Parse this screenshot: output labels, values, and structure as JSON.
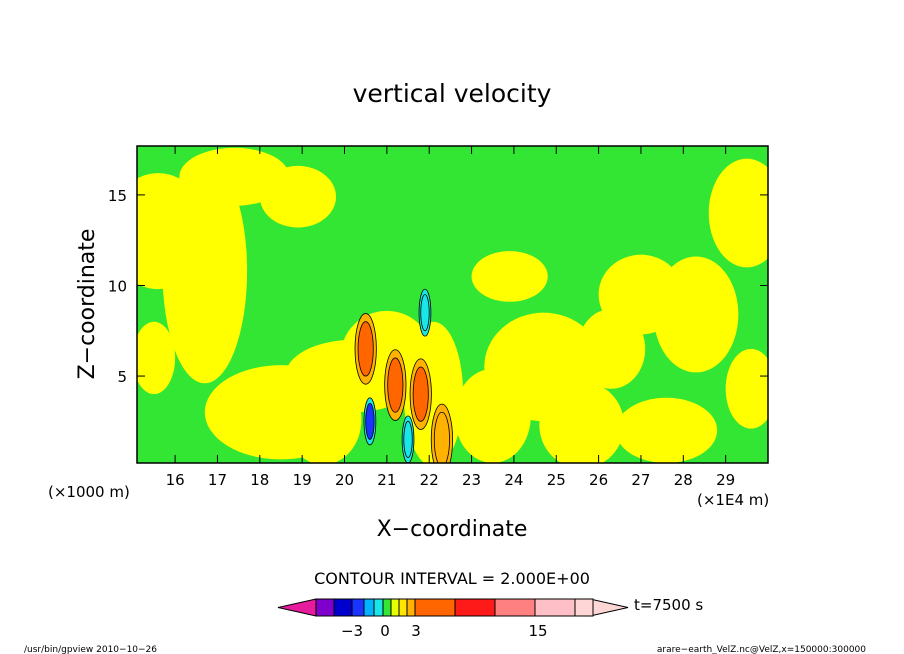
{
  "chart_data": {
    "type": "heatmap",
    "title": "vertical velocity",
    "xlabel": "X−coordinate",
    "ylabel": "Z−coordinate",
    "x_ticks": [
      "16",
      "17",
      "18",
      "19",
      "20",
      "21",
      "22",
      "23",
      "24",
      "25",
      "26",
      "27",
      "28",
      "29"
    ],
    "x_tick_values": [
      16,
      17,
      18,
      19,
      20,
      21,
      22,
      23,
      24,
      25,
      26,
      27,
      28,
      29
    ],
    "x_range": [
      15.1,
      30.0
    ],
    "x_unit_label": "(×1E4 m)",
    "y_ticks": [
      "5",
      "10",
      "15"
    ],
    "y_tick_values": [
      5,
      10,
      15
    ],
    "y_range": [
      0.2,
      17.7
    ],
    "y_unit_label": "(×1000 m)",
    "contour_interval": "CONTOUR INTERVAL = 2.000E+00",
    "time_label": "t=7500 s",
    "colorbar": {
      "tick_labels": [
        "−3",
        "0",
        "3",
        "15"
      ],
      "colors": [
        "#e61c9c",
        "#7f00cc",
        "#0000cc",
        "#1a33ff",
        "#00b3ff",
        "#19e6e6",
        "#33e633",
        "#e6ff00",
        "#ffe600",
        "#ffb300",
        "#ff6600",
        "#ff1a1a",
        "#ff8080",
        "#ffbfc6",
        "#ffd6d6"
      ]
    },
    "field_colors": {
      "weak_negative": "#33e633",
      "weak_positive": "#ffff00",
      "moderate_positive": "#ffb300",
      "strong_positive": "#ff6600",
      "moderate_negative": "#19e6e6",
      "strong_negative": "#1a33ff"
    },
    "peak_updrafts": [
      {
        "x": 20.5,
        "z": 6.5,
        "level": "strong_positive"
      },
      {
        "x": 21.2,
        "z": 4.5,
        "level": "strong_positive"
      },
      {
        "x": 21.8,
        "z": 4.0,
        "level": "strong_positive"
      },
      {
        "x": 22.3,
        "z": 1.5,
        "level": "moderate_positive"
      }
    ],
    "peak_downdrafts": [
      {
        "x": 20.6,
        "z": 2.5,
        "level": "strong_negative"
      },
      {
        "x": 21.5,
        "z": 1.5,
        "level": "moderate_negative"
      },
      {
        "x": 21.9,
        "z": 8.5,
        "level": "moderate_negative"
      }
    ]
  },
  "footer": {
    "left": "/usr/bin/gpview   2010−10−26",
    "right": "arare−earth_VelZ.nc@VelZ,x=150000:300000"
  }
}
